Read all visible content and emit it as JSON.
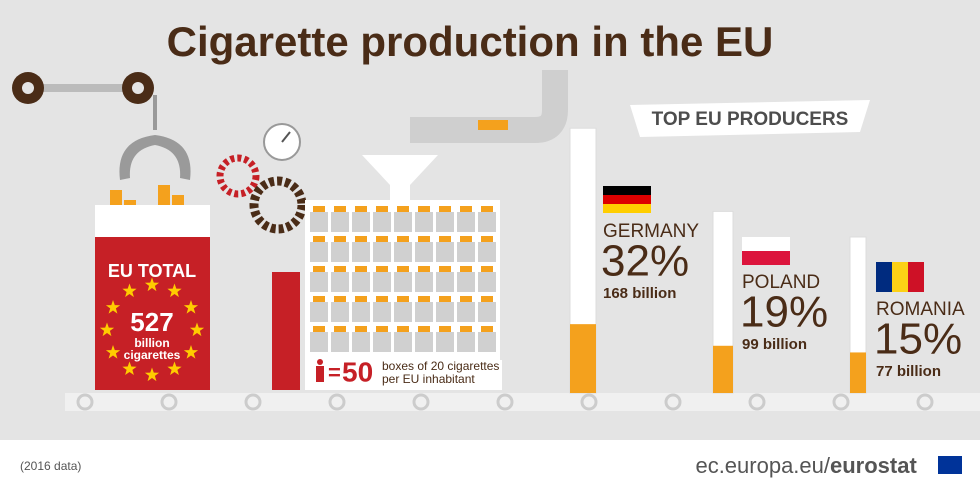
{
  "title": "Cigarette production in the EU",
  "banner": "TOP EU PRODUCERS",
  "eu_total": {
    "label": "EU TOTAL",
    "value": "527",
    "line1": "billion",
    "line2": "cigarettes"
  },
  "per_inhabitant": {
    "equals": "=",
    "number": "50",
    "line1": "boxes of 20 cigarettes",
    "line2": "per EU inhabitant"
  },
  "producers": [
    {
      "name": "GERMANY",
      "share": 32,
      "share_label": "32%",
      "amount": "168 billion"
    },
    {
      "name": "POLAND",
      "share": 19,
      "share_label": "19%",
      "amount": "99 billion"
    },
    {
      "name": "ROMANIA",
      "share": 15,
      "share_label": "15%",
      "amount": "77 billion"
    }
  ],
  "footer": {
    "note": "(2016 data)",
    "url": "ec.europa.eu/",
    "brand": "eurostat"
  }
}
